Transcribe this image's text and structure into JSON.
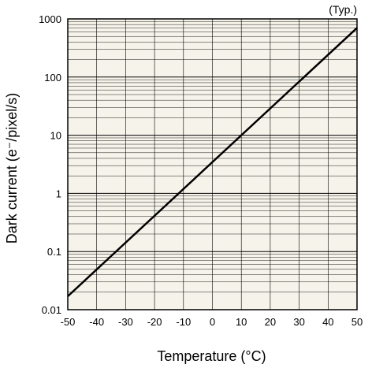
{
  "chart_data": {
    "type": "line",
    "note": "(Typ.)",
    "xlabel": "Temperature (°C)",
    "ylabel": "Dark current (e⁻/pixel/s)",
    "xlim": [
      -50,
      50
    ],
    "ylim": [
      0.01,
      1000
    ],
    "yscale": "log",
    "grid": true,
    "x_ticks": [
      -50,
      -40,
      -30,
      -20,
      -10,
      0,
      10,
      20,
      30,
      40,
      50
    ],
    "x_tick_labels": [
      "-50",
      "-40",
      "-30",
      "-20",
      "-10",
      "0",
      "10",
      "20",
      "30",
      "40",
      "50"
    ],
    "y_ticks": [
      0.01,
      0.1,
      1,
      10,
      100,
      1000
    ],
    "y_tick_labels": [
      "0.01",
      "0.1",
      "1",
      "10",
      "100",
      "1000"
    ],
    "series": [
      {
        "x": [
          -50,
          50
        ],
        "y": [
          0.017,
          700
        ]
      }
    ],
    "colors": {
      "plot_background": "#f6f4ea",
      "grid": "#000000",
      "line": "#000000"
    }
  }
}
